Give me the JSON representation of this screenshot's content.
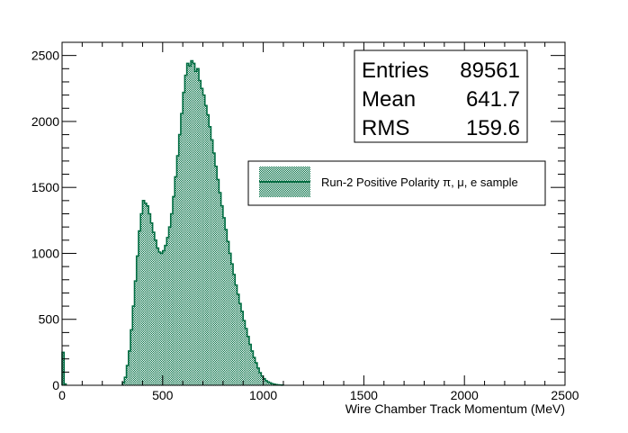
{
  "chart_data": {
    "type": "histogram",
    "title": "",
    "xlabel": "Wire Chamber Track Momentum (MeV)",
    "ylabel": "",
    "xlim": [
      0,
      2500
    ],
    "ylim": [
      0,
      2600
    ],
    "grid": false,
    "x_ticks": [
      "0",
      "500",
      "1000",
      "1500",
      "2000",
      "2500"
    ],
    "y_ticks": [
      "0",
      "500",
      "1000",
      "1500",
      "2000",
      "2500"
    ],
    "x_tick_values": [
      0,
      500,
      1000,
      1500,
      2000,
      2500
    ],
    "y_tick_values": [
      0,
      500,
      1000,
      1500,
      2000,
      2500
    ],
    "bin_width": 10,
    "series": [
      {
        "name": "Run-2 Positive Polarity π, μ, e sample",
        "color": "#006d42",
        "fill_pattern": "dotted",
        "bins": [
          [
            0,
            250
          ],
          [
            10,
            10
          ],
          [
            300,
            20
          ],
          [
            310,
            60
          ],
          [
            320,
            150
          ],
          [
            330,
            260
          ],
          [
            340,
            420
          ],
          [
            350,
            600
          ],
          [
            360,
            790
          ],
          [
            370,
            980
          ],
          [
            380,
            1170
          ],
          [
            390,
            1300
          ],
          [
            400,
            1400
          ],
          [
            410,
            1380
          ],
          [
            420,
            1360
          ],
          [
            430,
            1300
          ],
          [
            440,
            1230
          ],
          [
            450,
            1160
          ],
          [
            460,
            1100
          ],
          [
            470,
            1040
          ],
          [
            480,
            1010
          ],
          [
            490,
            1000
          ],
          [
            500,
            1020
          ],
          [
            510,
            1060
          ],
          [
            520,
            1120
          ],
          [
            530,
            1200
          ],
          [
            540,
            1300
          ],
          [
            550,
            1430
          ],
          [
            560,
            1580
          ],
          [
            570,
            1740
          ],
          [
            580,
            1900
          ],
          [
            590,
            2060
          ],
          [
            600,
            2220
          ],
          [
            610,
            2350
          ],
          [
            620,
            2440
          ],
          [
            630,
            2420
          ],
          [
            640,
            2460
          ],
          [
            650,
            2440
          ],
          [
            660,
            2380
          ],
          [
            670,
            2400
          ],
          [
            680,
            2310
          ],
          [
            690,
            2250
          ],
          [
            700,
            2200
          ],
          [
            710,
            2120
          ],
          [
            720,
            2050
          ],
          [
            730,
            1960
          ],
          [
            740,
            1860
          ],
          [
            750,
            1760
          ],
          [
            760,
            1660
          ],
          [
            770,
            1560
          ],
          [
            780,
            1460
          ],
          [
            790,
            1360
          ],
          [
            800,
            1270
          ],
          [
            810,
            1180
          ],
          [
            820,
            1090
          ],
          [
            830,
            1000
          ],
          [
            840,
            920
          ],
          [
            850,
            840
          ],
          [
            860,
            760
          ],
          [
            870,
            690
          ],
          [
            880,
            620
          ],
          [
            890,
            560
          ],
          [
            900,
            490
          ],
          [
            910,
            430
          ],
          [
            920,
            370
          ],
          [
            930,
            310
          ],
          [
            940,
            260
          ],
          [
            950,
            210
          ],
          [
            960,
            170
          ],
          [
            970,
            130
          ],
          [
            980,
            95
          ],
          [
            990,
            70
          ],
          [
            1000,
            50
          ],
          [
            1010,
            35
          ],
          [
            1020,
            25
          ],
          [
            1030,
            18
          ],
          [
            1040,
            12
          ],
          [
            1050,
            8
          ],
          [
            1060,
            5
          ],
          [
            1070,
            3
          ],
          [
            1080,
            2
          ],
          [
            1090,
            1
          ]
        ]
      }
    ],
    "stats": [
      {
        "label": "Entries",
        "value": "89561"
      },
      {
        "label": "Mean",
        "value": "641.7"
      },
      {
        "label": "RMS",
        "value": "159.6"
      }
    ],
    "legend": {
      "placement": "upper-right",
      "entry": "Run-2 Positive Polarity π, μ, e sample"
    }
  }
}
